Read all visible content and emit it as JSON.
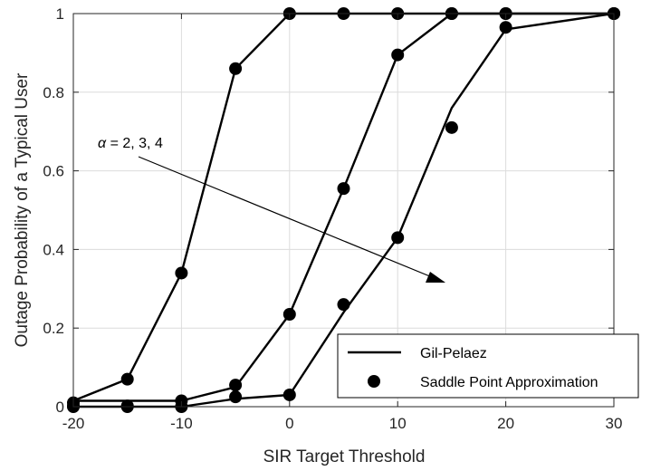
{
  "chart_data": {
    "type": "line",
    "xlabel": "SIR Target Threshold",
    "ylabel": "Outage Probability of a Typical User",
    "xlim": [
      -20,
      30
    ],
    "ylim": [
      0,
      1
    ],
    "xticks": [
      -20,
      -10,
      0,
      10,
      20,
      30
    ],
    "yticks": [
      0,
      0.2,
      0.4,
      0.6,
      0.8,
      1
    ],
    "grid": true,
    "legend_position": "bottom-right",
    "legend": {
      "line_label": "Gil-Pelaez",
      "marker_label": "Saddle Point Approximation"
    },
    "annotation": {
      "symbol": "α",
      "text": " = 2, 3, 4"
    },
    "x": [
      -20,
      -15,
      -10,
      -5,
      0,
      5,
      10,
      15,
      20,
      30
    ],
    "series": [
      {
        "line": [
          0.015,
          0.07,
          0.34,
          0.86,
          1,
          1,
          1,
          1,
          1,
          1
        ],
        "markers": [
          0.01,
          0.07,
          0.34,
          0.86,
          1,
          1,
          1,
          1,
          1,
          1
        ]
      },
      {
        "line": [
          0.015,
          0.015,
          0.015,
          0.05,
          0.235,
          0.555,
          0.895,
          1,
          1,
          1
        ],
        "markers": [
          0.002,
          0.002,
          0.015,
          0.055,
          0.235,
          0.555,
          0.895,
          1,
          1,
          1
        ]
      },
      {
        "line": [
          0.0,
          0.0,
          0.0,
          0.02,
          0.03,
          0.24,
          0.43,
          0.76,
          0.96,
          1
        ],
        "markers": [
          0.0,
          0.0,
          0.0,
          0.025,
          0.03,
          0.26,
          0.43,
          0.71,
          0.965,
          1
        ]
      }
    ]
  }
}
